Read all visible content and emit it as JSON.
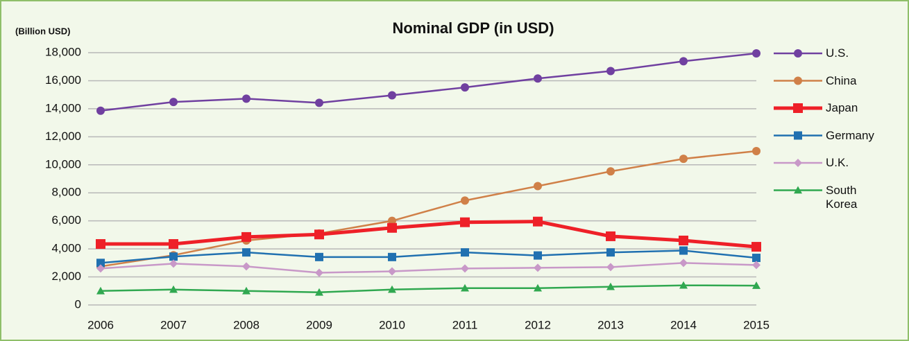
{
  "chart_data": {
    "type": "line",
    "title": "Nominal GDP (in USD)",
    "y_label": "(Billion USD)",
    "categories": [
      "2006",
      "2007",
      "2008",
      "2009",
      "2010",
      "2011",
      "2012",
      "2013",
      "2014",
      "2015"
    ],
    "series": [
      {
        "name": "U.S.",
        "color": "#7040a0",
        "marker": "circle",
        "linewidth": 2.5,
        "values": [
          13860,
          14480,
          14720,
          14420,
          14960,
          15520,
          16160,
          16690,
          17390,
          17950
        ]
      },
      {
        "name": "China",
        "color": "#d08048",
        "marker": "circle",
        "linewidth": 2.5,
        "values": [
          2750,
          3550,
          4600,
          5100,
          6000,
          7450,
          8480,
          9530,
          10430,
          10980
        ]
      },
      {
        "name": "Japan",
        "color": "#ee2028",
        "marker": "square",
        "linewidth": 5,
        "values": [
          4350,
          4350,
          4850,
          5030,
          5500,
          5900,
          5950,
          4900,
          4600,
          4150
        ]
      },
      {
        "name": "Germany",
        "color": "#2070b0",
        "marker": "square",
        "linewidth": 2.5,
        "values": [
          3000,
          3450,
          3750,
          3420,
          3420,
          3750,
          3530,
          3750,
          3880,
          3360
        ]
      },
      {
        "name": "U.K.",
        "color": "#c898c8",
        "marker": "diamond",
        "linewidth": 2.5,
        "values": [
          2600,
          2950,
          2750,
          2300,
          2400,
          2600,
          2650,
          2700,
          3000,
          2850
        ]
      },
      {
        "name": "South Korea",
        "color": "#30a850",
        "marker": "triangle",
        "linewidth": 2.5,
        "values": [
          1000,
          1100,
          1000,
          900,
          1100,
          1200,
          1200,
          1300,
          1400,
          1380
        ]
      }
    ],
    "ylim": [
      0,
      18000
    ],
    "yticks": [
      0,
      {
        "value": 2000,
        "label": "2,000"
      },
      {
        "value": 4000,
        "label": "4,000"
      },
      {
        "value": 6000,
        "label": "6,000"
      },
      {
        "value": 8000,
        "label": "8,000"
      },
      {
        "value": 10000,
        "label": "10,000"
      },
      {
        "value": 12000,
        "label": "12,000"
      },
      {
        "value": 14000,
        "label": "14,000"
      },
      {
        "value": 16000,
        "label": "16,000"
      },
      {
        "value": 18000,
        "label": "18,000"
      }
    ],
    "grid": true,
    "legend": "right"
  }
}
